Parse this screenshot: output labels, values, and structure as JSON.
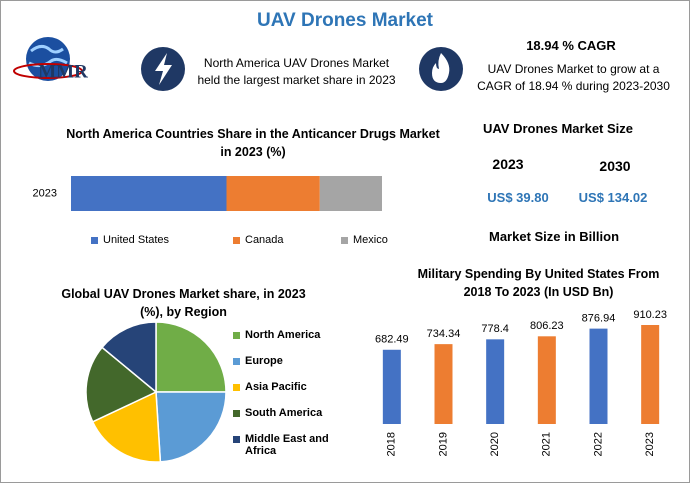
{
  "header": {
    "title": "UAV Drones Market",
    "logo_text": "MMR"
  },
  "highlights": [
    {
      "text": "North America UAV Drones Market held the largest market share in 2023"
    },
    {
      "heading": "18.94 % CAGR",
      "text": "UAV Drones Market to grow at a CAGR of 18.94 % during 2023-2030"
    }
  ],
  "market_size": {
    "title": "UAV Drones Market Size",
    "columns": [
      {
        "year": "2023",
        "value": "US$ 39.80"
      },
      {
        "year": "2030",
        "value": "US$ 134.02"
      }
    ],
    "note": "Market Size in Billion"
  },
  "chart_data": [
    {
      "type": "bar",
      "orientation": "horizontal",
      "stacked": true,
      "title": "North America Countries Share in the Anticancer Drugs Market in 2023 (%)",
      "categories": [
        "2023"
      ],
      "series": [
        {
          "name": "United States",
          "color": "#4472c4",
          "values": [
            50
          ]
        },
        {
          "name": "Canada",
          "color": "#ed7d31",
          "values": [
            30
          ]
        },
        {
          "name": "Mexico",
          "color": "#a5a5a5",
          "values": [
            20
          ]
        }
      ],
      "legend": "bottom"
    },
    {
      "type": "pie",
      "title": "Global UAV Drones Market share, in 2023 (%), by Region",
      "categories": [
        "North America",
        "Europe",
        "Asia Pacific",
        "South America",
        "Middle East and Africa"
      ],
      "values": [
        25,
        24,
        19,
        18,
        14
      ],
      "colors": [
        "#70ad47",
        "#5b9bd5",
        "#ffc000",
        "#43682b",
        "#264478"
      ],
      "legend": "right"
    },
    {
      "type": "bar",
      "orientation": "vertical",
      "title": "Military Spending By United States From 2018 To 2023 (In USD Bn)",
      "categories": [
        "2018",
        "2019",
        "2020",
        "2021",
        "2022",
        "2023"
      ],
      "values": [
        682.49,
        734.34,
        778.4,
        806.23,
        876.94,
        910.23
      ],
      "colors": [
        "#4472c4",
        "#ed7d31",
        "#4472c4",
        "#ed7d31",
        "#4472c4",
        "#ed7d31"
      ],
      "data_labels": true
    }
  ]
}
